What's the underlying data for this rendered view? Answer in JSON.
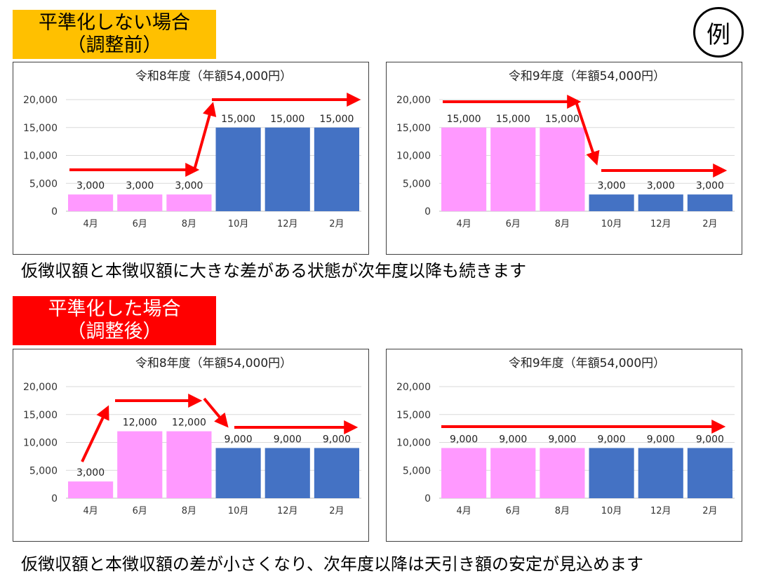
{
  "labels": {
    "before_line1": "平準化しない場合",
    "before_line2": "（調整前）",
    "after_line1": "平準化した場合",
    "after_line2": "（調整後）",
    "example": "例"
  },
  "captions": {
    "before": "仮徴収額と本徴収額に大きな差がある状態が次年度以降も続きます",
    "after": "仮徴収額と本徴収額の差が小さくなり、次年度以降は天引き額の安定が見込めます"
  },
  "colors": {
    "pink": "#ff99ff",
    "blue": "#4472c4",
    "arrow": "#ff0000",
    "grid": "#d9d9d9"
  },
  "chart_data": [
    {
      "id": "before-r8",
      "type": "bar",
      "title": "令和8年度（年額54,000円）",
      "categories": [
        "4月",
        "6月",
        "8月",
        "10月",
        "12月",
        "2月"
      ],
      "values": [
        3000,
        3000,
        3000,
        15000,
        15000,
        15000
      ],
      "value_labels": [
        "3,000",
        "3,000",
        "3,000",
        "15,000",
        "15,000",
        "15,000"
      ],
      "bar_colors": [
        "pink",
        "pink",
        "pink",
        "blue",
        "blue",
        "blue"
      ],
      "yticks": [
        0,
        5000,
        10000,
        15000,
        20000
      ],
      "ytick_labels": [
        "0",
        "5,000",
        "10,000",
        "15,000",
        "20,000"
      ],
      "ylim": [
        0,
        20000
      ],
      "grid": true
    },
    {
      "id": "before-r9",
      "type": "bar",
      "title": "令和9年度（年額54,000円）",
      "categories": [
        "4月",
        "6月",
        "8月",
        "10月",
        "12月",
        "2月"
      ],
      "values": [
        15000,
        15000,
        15000,
        3000,
        3000,
        3000
      ],
      "value_labels": [
        "15,000",
        "15,000",
        "15,000",
        "3,000",
        "3,000",
        "3,000"
      ],
      "bar_colors": [
        "pink",
        "pink",
        "pink",
        "blue",
        "blue",
        "blue"
      ],
      "yticks": [
        0,
        5000,
        10000,
        15000,
        20000
      ],
      "ytick_labels": [
        "0",
        "5,000",
        "10,000",
        "15,000",
        "20,000"
      ],
      "ylim": [
        0,
        20000
      ],
      "grid": true
    },
    {
      "id": "after-r8",
      "type": "bar",
      "title": "令和8年度（年額54,000円）",
      "categories": [
        "4月",
        "6月",
        "8月",
        "10月",
        "12月",
        "2月"
      ],
      "values": [
        3000,
        12000,
        12000,
        9000,
        9000,
        9000
      ],
      "value_labels": [
        "3,000",
        "12,000",
        "12,000",
        "9,000",
        "9,000",
        "9,000"
      ],
      "bar_colors": [
        "pink",
        "pink",
        "pink",
        "blue",
        "blue",
        "blue"
      ],
      "yticks": [
        0,
        5000,
        10000,
        15000,
        20000
      ],
      "ytick_labels": [
        "0",
        "5,000",
        "10,000",
        "15,000",
        "20,000"
      ],
      "ylim": [
        0,
        20000
      ],
      "grid": true
    },
    {
      "id": "after-r9",
      "type": "bar",
      "title": "令和9年度（年額54,000円）",
      "categories": [
        "4月",
        "6月",
        "8月",
        "10月",
        "12月",
        "2月"
      ],
      "values": [
        9000,
        9000,
        9000,
        9000,
        9000,
        9000
      ],
      "value_labels": [
        "9,000",
        "9,000",
        "9,000",
        "9,000",
        "9,000",
        "9,000"
      ],
      "bar_colors": [
        "pink",
        "pink",
        "pink",
        "blue",
        "blue",
        "blue"
      ],
      "yticks": [
        0,
        5000,
        10000,
        15000,
        20000
      ],
      "ytick_labels": [
        "0",
        "5,000",
        "10,000",
        "15,000",
        "20,000"
      ],
      "ylim": [
        0,
        20000
      ],
      "grid": true
    }
  ]
}
